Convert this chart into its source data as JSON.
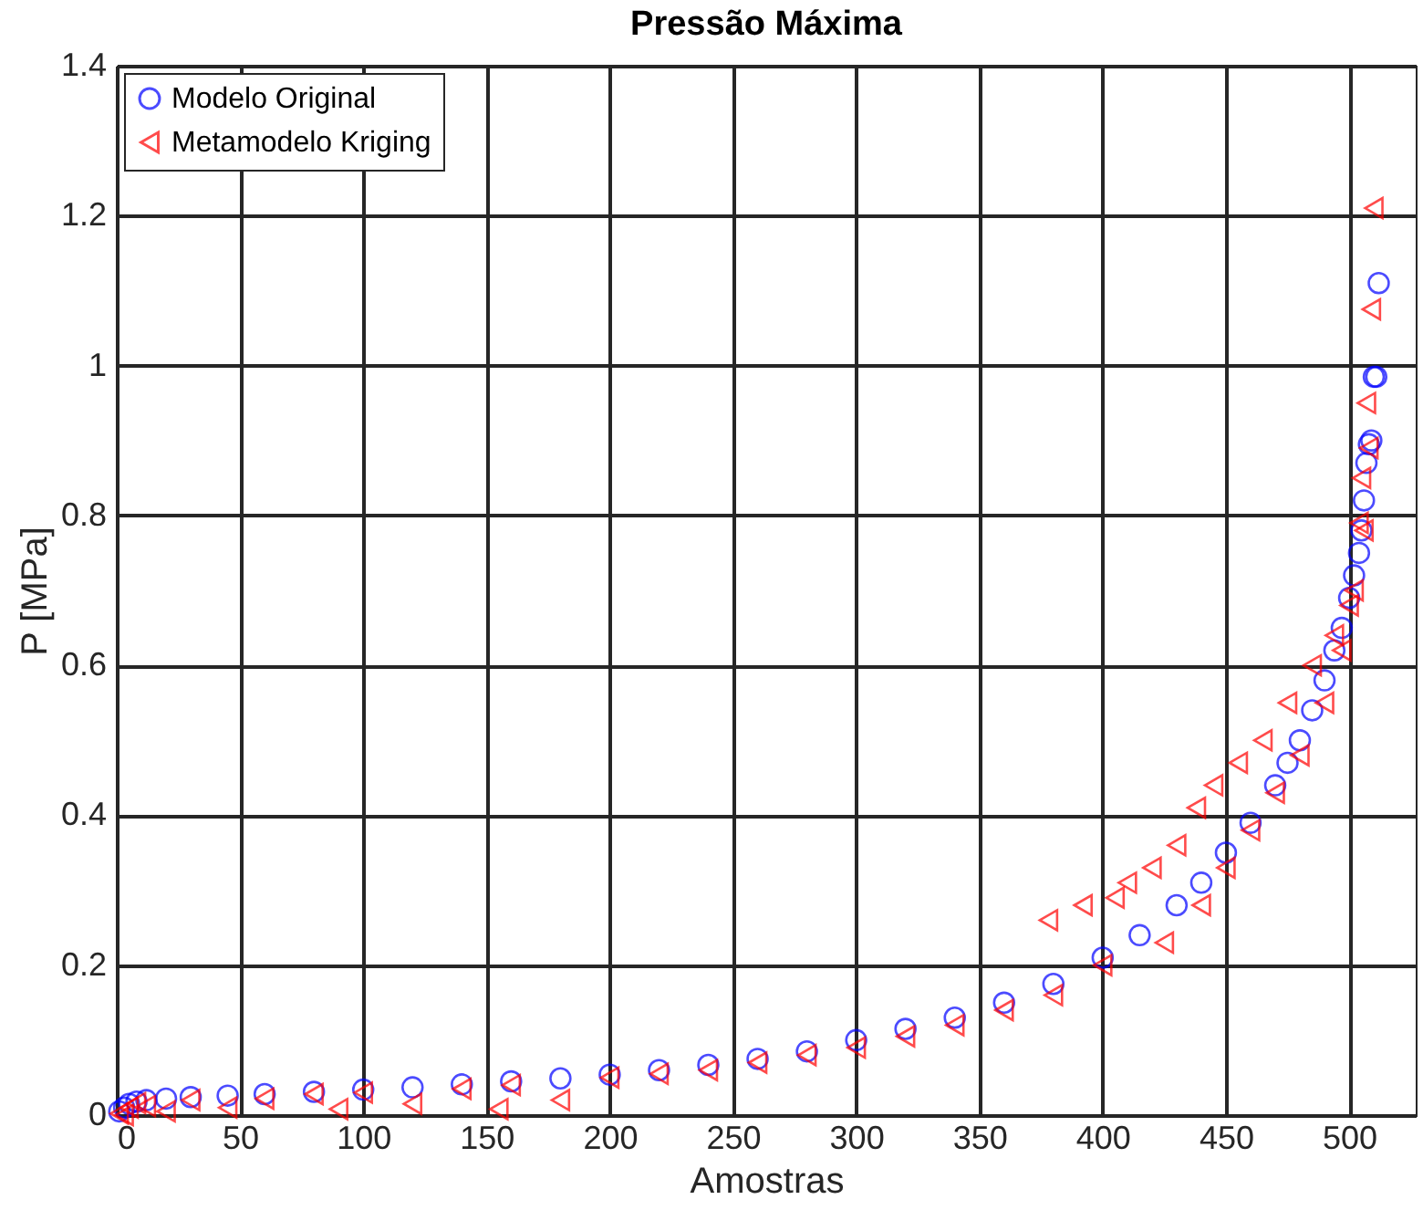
{
  "chart_data": {
    "type": "scatter",
    "title": "Pressão Máxima",
    "xlabel": "Amostras",
    "ylabel": "P [MPa]",
    "xlim": [
      0,
      527
    ],
    "ylim": [
      0,
      1.4
    ],
    "xticks": [
      0,
      50,
      100,
      150,
      200,
      250,
      300,
      350,
      400,
      450,
      500
    ],
    "yticks": [
      0,
      0.2,
      0.4,
      0.6,
      0.8,
      1,
      1.2,
      1.4
    ],
    "grid": true,
    "legend": "top left",
    "series": [
      {
        "name": "Modelo Original",
        "color": "#0000ff",
        "marker": "circle",
        "x": [
          1,
          3,
          5,
          8,
          12,
          20,
          30,
          45,
          60,
          80,
          100,
          120,
          140,
          160,
          180,
          200,
          220,
          240,
          260,
          280,
          300,
          320,
          340,
          360,
          380,
          400,
          415,
          430,
          440,
          450,
          460,
          470,
          475,
          480,
          485,
          490,
          494,
          497,
          500,
          502,
          504,
          505,
          506,
          507,
          508,
          509,
          510,
          511,
          512
        ],
        "values": [
          0.005,
          0.01,
          0.015,
          0.018,
          0.02,
          0.022,
          0.024,
          0.026,
          0.028,
          0.031,
          0.034,
          0.037,
          0.041,
          0.045,
          0.049,
          0.054,
          0.06,
          0.067,
          0.075,
          0.085,
          0.1,
          0.115,
          0.13,
          0.15,
          0.175,
          0.21,
          0.24,
          0.28,
          0.31,
          0.35,
          0.39,
          0.44,
          0.47,
          0.5,
          0.54,
          0.58,
          0.62,
          0.65,
          0.69,
          0.72,
          0.75,
          0.78,
          0.82,
          0.87,
          0.895,
          0.9,
          0.985,
          0.985,
          1.11
        ]
      },
      {
        "name": "Metamodelo Kriging",
        "color": "#ff0000",
        "marker": "triangle",
        "x": [
          1,
          3,
          5,
          8,
          12,
          20,
          30,
          45,
          60,
          80,
          90,
          100,
          120,
          140,
          155,
          160,
          180,
          200,
          220,
          240,
          260,
          280,
          300,
          320,
          340,
          360,
          378,
          380,
          392,
          400,
          405,
          410,
          420,
          425,
          430,
          438,
          440,
          445,
          450,
          455,
          460,
          465,
          470,
          475,
          480,
          485,
          490,
          494,
          497,
          500,
          502,
          504,
          505,
          506,
          507,
          508,
          509,
          510
        ],
        "values": [
          0.002,
          0.0,
          0.01,
          0.016,
          0.012,
          0.005,
          0.02,
          0.01,
          0.022,
          0.028,
          0.008,
          0.03,
          0.015,
          0.035,
          0.008,
          0.04,
          0.02,
          0.05,
          0.055,
          0.06,
          0.07,
          0.08,
          0.09,
          0.105,
          0.12,
          0.14,
          0.26,
          0.16,
          0.28,
          0.2,
          0.29,
          0.31,
          0.33,
          0.23,
          0.36,
          0.41,
          0.28,
          0.44,
          0.33,
          0.47,
          0.38,
          0.5,
          0.43,
          0.55,
          0.48,
          0.6,
          0.55,
          0.64,
          0.62,
          0.68,
          0.7,
          0.79,
          0.85,
          0.78,
          0.95,
          0.89,
          1.075,
          1.21
        ]
      }
    ]
  }
}
